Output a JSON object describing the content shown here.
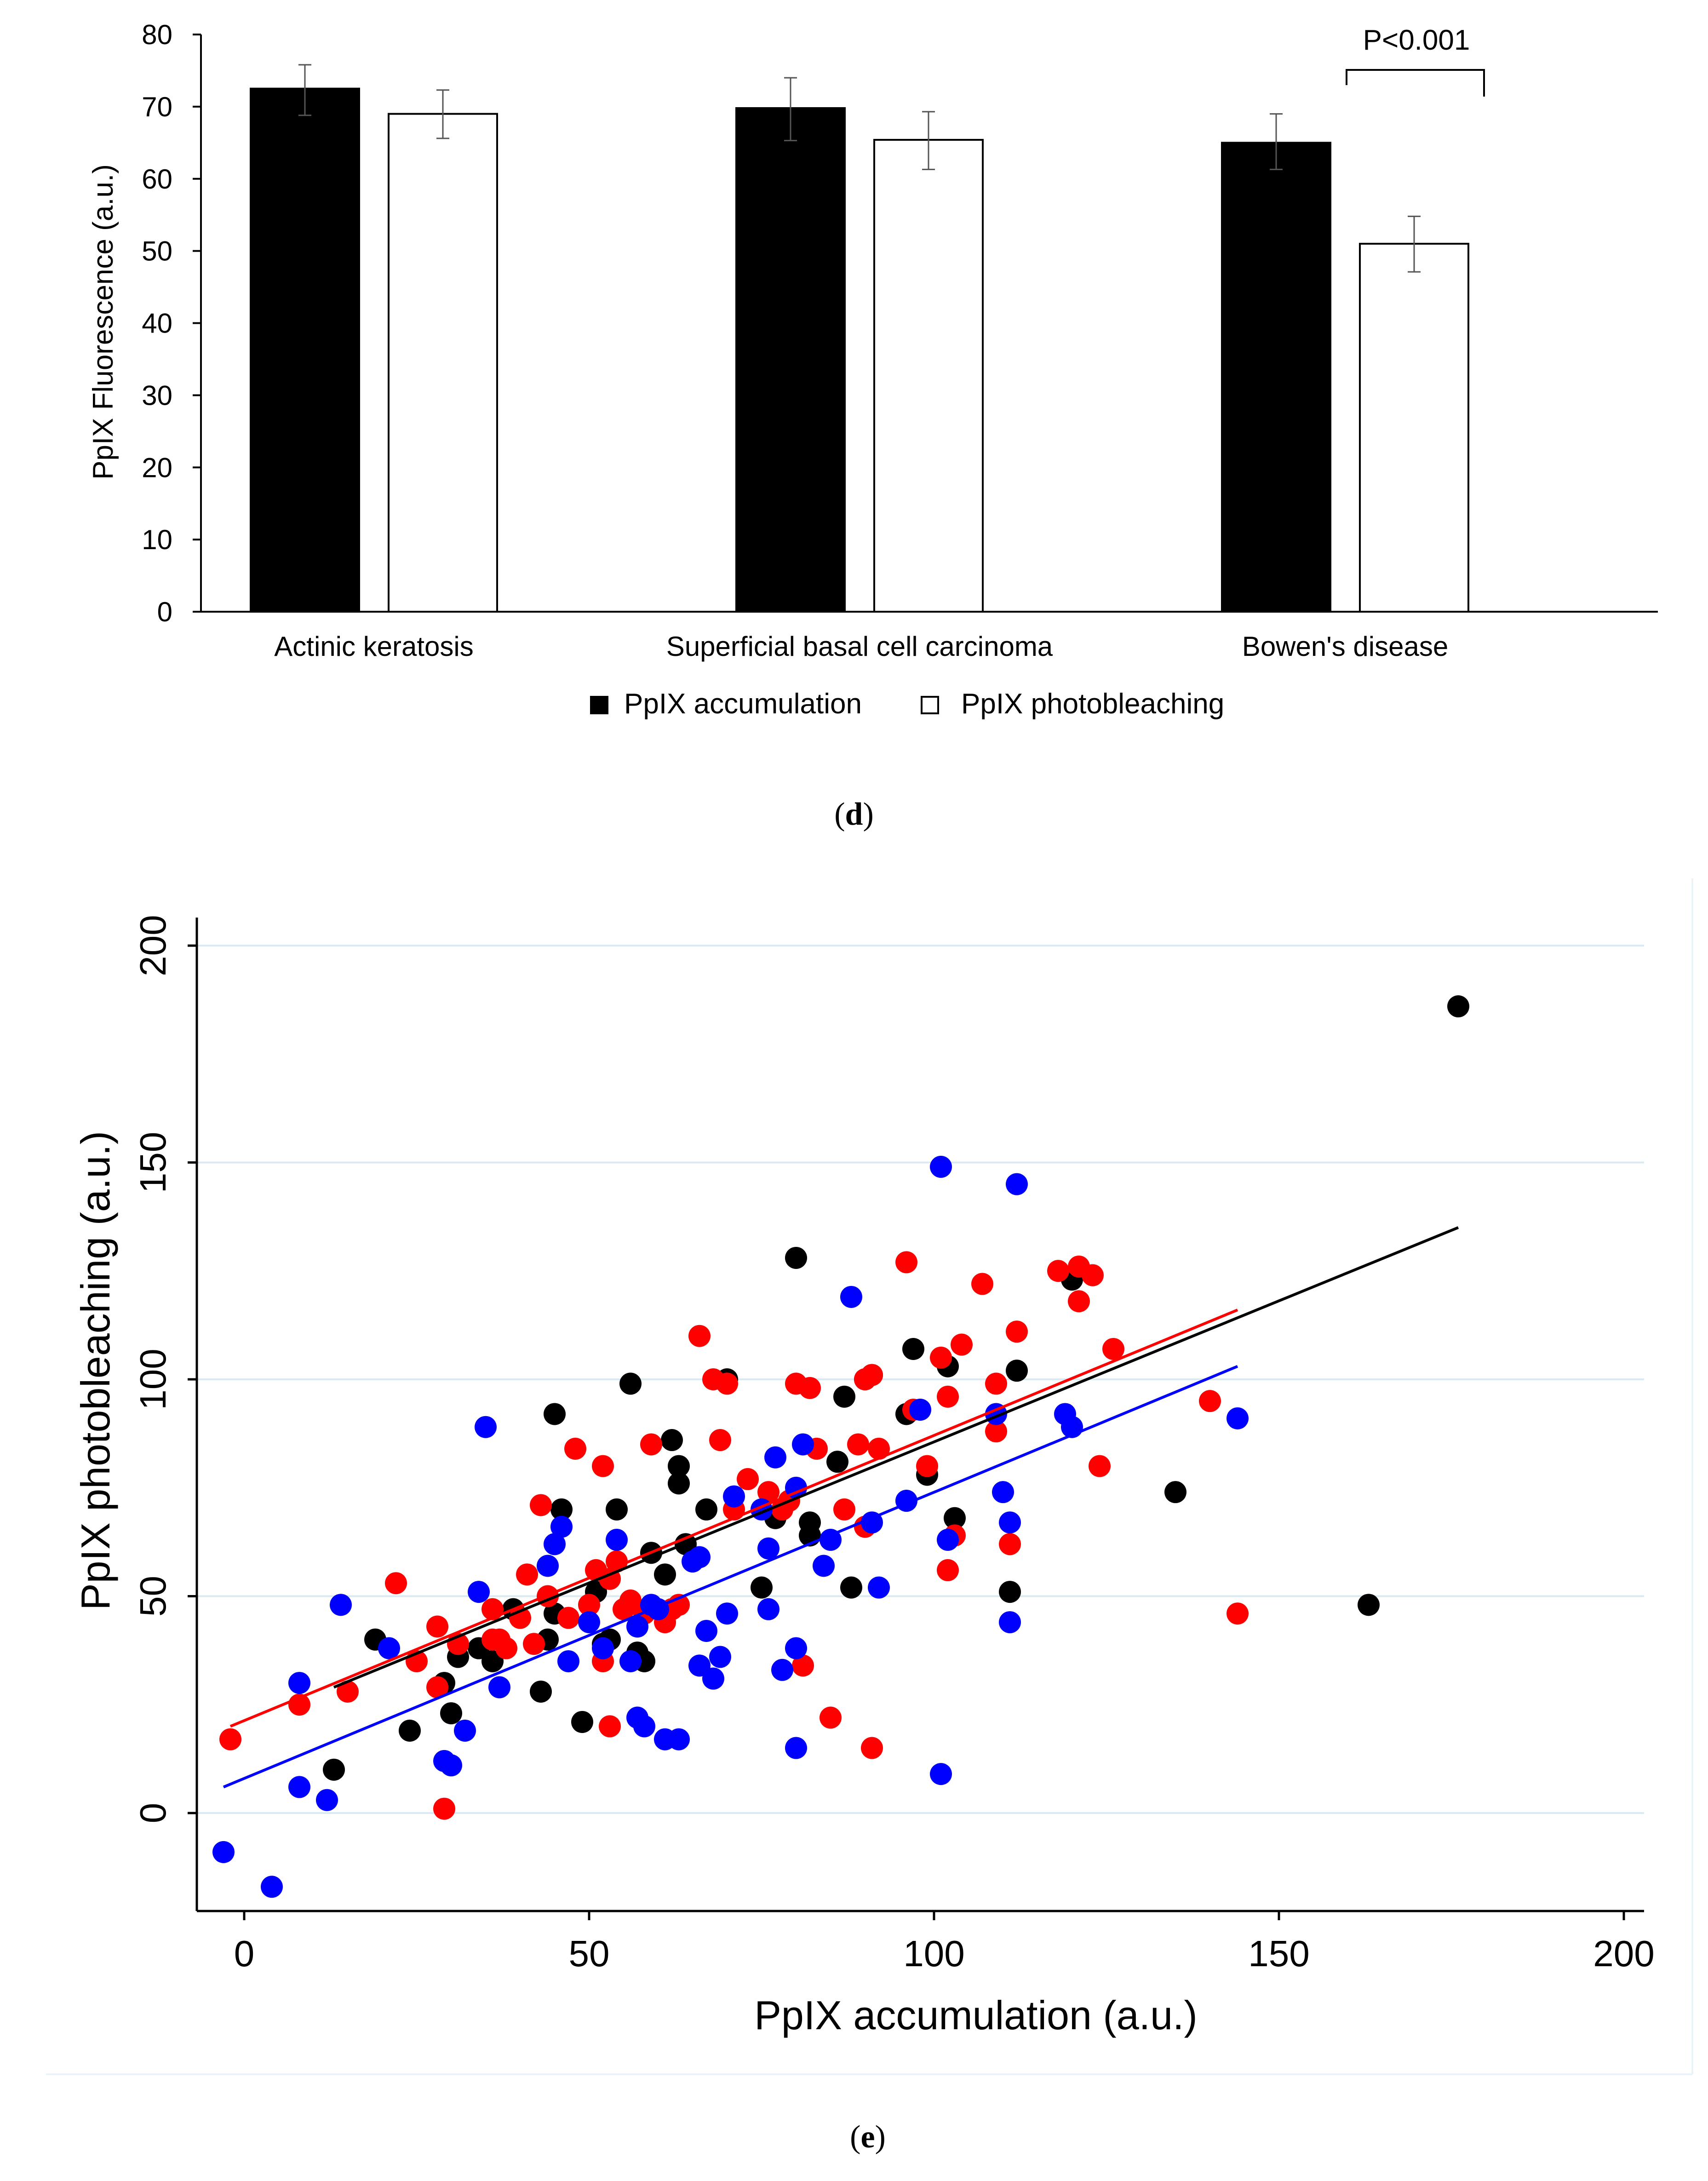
{
  "panel_d": {
    "caption_open": "(",
    "caption_letter": "d",
    "caption_close": ")",
    "annotation": "P<0.001",
    "legend": [
      {
        "label": "PpIX accumulation",
        "color": "#000000"
      },
      {
        "label": "PpIX photobleaching",
        "color": "#ffffff"
      }
    ]
  },
  "panel_e": {
    "caption_open": "(",
    "caption_letter": "e",
    "caption_close": ")"
  },
  "colors": {
    "black": "#000000",
    "red": "#ff0000",
    "blue": "#0000ff",
    "grid": "#d9eaf2"
  },
  "chart_data": [
    {
      "type": "bar",
      "title": "",
      "xlabel": "",
      "ylabel": "PpIX Fluorescence (a.u.)",
      "ylim": [
        0,
        80
      ],
      "yticks": [
        0,
        10,
        20,
        30,
        40,
        50,
        60,
        70,
        80
      ],
      "categories": [
        "Actinic keratosis",
        "Superficial basal cell carcinoma",
        "Bowen's disease"
      ],
      "series": [
        {
          "name": "PpIX accumulation",
          "values": [
            72.5,
            69.8,
            65.0
          ],
          "err_low": [
            68.8,
            65.3,
            61.3
          ],
          "err_high": [
            75.8,
            74.0,
            69.0
          ]
        },
        {
          "name": "PpIX photobleaching",
          "values": [
            69.0,
            65.4,
            51.0
          ],
          "err_low": [
            65.6,
            61.3,
            47.1
          ],
          "err_high": [
            72.3,
            69.3,
            54.8
          ]
        }
      ],
      "legend_position": "bottom",
      "annotations": [
        {
          "text": "P<0.001",
          "category": "Bowen's disease",
          "y": 75.5
        }
      ]
    },
    {
      "type": "scatter",
      "title": "",
      "xlabel": "PpIX accumulation (a.u.)",
      "ylabel": "PpIX photobleaching (a.u.)",
      "xlim": [
        -5,
        203
      ],
      "ylim": [
        -23,
        205
      ],
      "xticks": [
        0,
        50,
        100,
        150,
        200
      ],
      "yticks": [
        0,
        50,
        100,
        150,
        200
      ],
      "grid": "horizontal",
      "series": [
        {
          "name": "black",
          "color": "#000000",
          "fit": {
            "x": [
              13,
              176
            ],
            "y": [
              29,
              135
            ]
          },
          "points": [
            [
              13,
              10
            ],
            [
              19,
              40
            ],
            [
              24,
              19
            ],
            [
              29,
              30
            ],
            [
              30,
              23
            ],
            [
              31,
              36
            ],
            [
              34,
              38
            ],
            [
              36,
              35
            ],
            [
              39,
              47
            ],
            [
              43,
              28
            ],
            [
              44,
              40
            ],
            [
              45,
              46
            ],
            [
              45,
              92
            ],
            [
              46,
              70
            ],
            [
              49,
              21
            ],
            [
              51,
              51
            ],
            [
              52,
              39
            ],
            [
              53,
              40
            ],
            [
              54,
              70
            ],
            [
              56,
              99
            ],
            [
              57,
              37
            ],
            [
              58,
              35
            ],
            [
              59,
              60
            ],
            [
              61,
              55
            ],
            [
              62,
              86
            ],
            [
              63,
              80
            ],
            [
              63,
              76
            ],
            [
              64,
              62
            ],
            [
              67,
              70
            ],
            [
              70,
              100
            ],
            [
              75,
              52
            ],
            [
              77,
              68
            ],
            [
              80,
              128
            ],
            [
              82,
              64
            ],
            [
              82,
              67
            ],
            [
              86,
              81
            ],
            [
              87,
              96
            ],
            [
              88,
              52
            ],
            [
              90,
              100
            ],
            [
              91,
              101
            ],
            [
              96,
              92
            ],
            [
              97,
              107
            ],
            [
              99,
              78
            ],
            [
              102,
              103
            ],
            [
              103,
              68
            ],
            [
              112,
              102
            ],
            [
              111,
              51
            ],
            [
              120,
              123
            ],
            [
              135,
              74
            ],
            [
              163,
              48
            ],
            [
              176,
              186
            ]
          ]
        },
        {
          "name": "red",
          "color": "#ff0000",
          "fit": {
            "x": [
              -2,
              144
            ],
            "y": [
              20,
              116
            ]
          },
          "points": [
            [
              -2,
              17
            ],
            [
              8,
              25
            ],
            [
              15,
              28
            ],
            [
              22,
              53
            ],
            [
              25,
              35
            ],
            [
              28,
              43
            ],
            [
              28,
              29
            ],
            [
              29,
              1
            ],
            [
              31,
              39
            ],
            [
              36,
              47
            ],
            [
              36,
              40
            ],
            [
              37,
              40
            ],
            [
              38,
              38
            ],
            [
              40,
              45
            ],
            [
              41,
              55
            ],
            [
              42,
              39
            ],
            [
              43,
              71
            ],
            [
              44,
              50
            ],
            [
              47,
              45
            ],
            [
              48,
              84
            ],
            [
              50,
              48
            ],
            [
              51,
              56
            ],
            [
              52,
              35
            ],
            [
              52,
              80
            ],
            [
              53,
              20
            ],
            [
              53,
              54
            ],
            [
              54,
              58
            ],
            [
              55,
              47
            ],
            [
              56,
              49
            ],
            [
              58,
              46
            ],
            [
              59,
              85
            ],
            [
              61,
              44
            ],
            [
              62,
              47
            ],
            [
              63,
              48
            ],
            [
              66,
              110
            ],
            [
              68,
              100
            ],
            [
              69,
              86
            ],
            [
              70,
              99
            ],
            [
              71,
              70
            ],
            [
              73,
              77
            ],
            [
              76,
              74
            ],
            [
              78,
              70
            ],
            [
              79,
              72
            ],
            [
              80,
              99
            ],
            [
              81,
              34
            ],
            [
              82,
              98
            ],
            [
              83,
              84
            ],
            [
              85,
              22
            ],
            [
              87,
              70
            ],
            [
              89,
              85
            ],
            [
              90,
              66
            ],
            [
              91,
              15
            ],
            [
              90,
              100
            ],
            [
              91,
              101
            ],
            [
              92,
              84
            ],
            [
              96,
              127
            ],
            [
              97,
              93
            ],
            [
              99,
              80
            ],
            [
              101,
              105
            ],
            [
              102,
              56
            ],
            [
              102,
              96
            ],
            [
              103,
              64
            ],
            [
              104,
              108
            ],
            [
              107,
              122
            ],
            [
              109,
              99
            ],
            [
              109,
              88
            ],
            [
              111,
              62
            ],
            [
              112,
              111
            ],
            [
              118,
              125
            ],
            [
              121,
              126
            ],
            [
              121,
              118
            ],
            [
              123,
              124
            ],
            [
              124,
              80
            ],
            [
              126,
              107
            ],
            [
              140,
              95
            ],
            [
              144,
              46
            ]
          ]
        },
        {
          "name": "blue",
          "color": "#0000ff",
          "fit": {
            "x": [
              -3,
              144
            ],
            "y": [
              6,
              103
            ]
          },
          "points": [
            [
              -3,
              -9
            ],
            [
              4,
              -17
            ],
            [
              8,
              6
            ],
            [
              8,
              30
            ],
            [
              12,
              3
            ],
            [
              14,
              48
            ],
            [
              21,
              38
            ],
            [
              29,
              12
            ],
            [
              30,
              11
            ],
            [
              32,
              19
            ],
            [
              34,
              51
            ],
            [
              35,
              89
            ],
            [
              37,
              29
            ],
            [
              44,
              57
            ],
            [
              45,
              62
            ],
            [
              46,
              66
            ],
            [
              47,
              35
            ],
            [
              50,
              44
            ],
            [
              52,
              38
            ],
            [
              54,
              63
            ],
            [
              56,
              35
            ],
            [
              57,
              43
            ],
            [
              57,
              22
            ],
            [
              58,
              20
            ],
            [
              59,
              48
            ],
            [
              60,
              47
            ],
            [
              61,
              17
            ],
            [
              63,
              17
            ],
            [
              65,
              58
            ],
            [
              66,
              59
            ],
            [
              66,
              34
            ],
            [
              67,
              42
            ],
            [
              68,
              31
            ],
            [
              69,
              36
            ],
            [
              70,
              46
            ],
            [
              71,
              73
            ],
            [
              75,
              70
            ],
            [
              76,
              61
            ],
            [
              76,
              47
            ],
            [
              77,
              82
            ],
            [
              78,
              33
            ],
            [
              80,
              75
            ],
            [
              80,
              38
            ],
            [
              80,
              15
            ],
            [
              81,
              85
            ],
            [
              84,
              57
            ],
            [
              85,
              63
            ],
            [
              88,
              119
            ],
            [
              91,
              67
            ],
            [
              92,
              52
            ],
            [
              96,
              72
            ],
            [
              98,
              93
            ],
            [
              101,
              149
            ],
            [
              101,
              9
            ],
            [
              102,
              63
            ],
            [
              109,
              92
            ],
            [
              110,
              74
            ],
            [
              111,
              44
            ],
            [
              111,
              67
            ],
            [
              112,
              145
            ],
            [
              119,
              92
            ],
            [
              120,
              89
            ],
            [
              144,
              91
            ]
          ]
        }
      ]
    }
  ]
}
